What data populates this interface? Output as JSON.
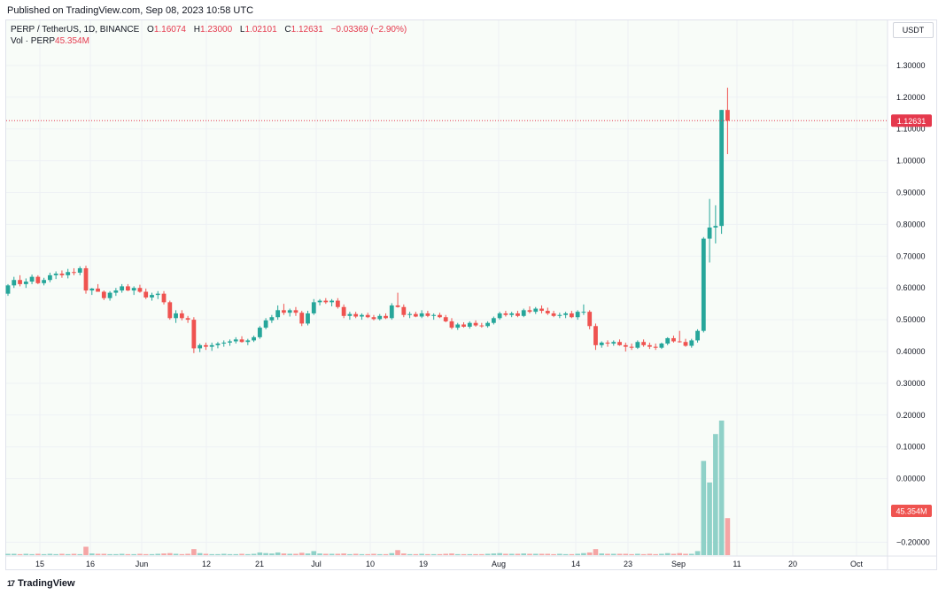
{
  "header": {
    "published": "Published on TradingView.com, Sep 08, 2023 10:58 UTC"
  },
  "legend": {
    "symbol": "PERP / TetherUS, 1D, BINANCE",
    "o_label": "O",
    "o_value": "1.16074",
    "h_label": "H",
    "h_value": "1.23000",
    "l_label": "L",
    "l_value": "1.02101",
    "c_label": "C",
    "c_value": "1.12631",
    "change": "−0.03369 (−2.90%)",
    "vol_label": "Vol · PERP",
    "vol_value": "45.354M"
  },
  "currency_button": "USDT",
  "footer": {
    "brand": "TradingView",
    "logo": "17"
  },
  "colors": {
    "up": "#26a69a",
    "down": "#ef5350",
    "up_vol": "#8fd1c8",
    "down_vol": "#f5a5a5",
    "price_line": "#e5394d",
    "grid": "#eef1f5"
  },
  "chart_data": {
    "type": "candlestick",
    "symbol": "PERP / TetherUS",
    "interval": "1D",
    "exchange": "BINANCE",
    "y_axis": {
      "ticks": [
        "1.30000",
        "1.20000",
        "1.10000",
        "1.00000",
        "0.90000",
        "0.80000",
        "0.70000",
        "0.60000",
        "0.50000",
        "0.40000",
        "0.30000",
        "0.20000",
        "0.10000",
        "0.00000",
        "−0.20000"
      ],
      "range": [
        -0.24,
        1.34
      ]
    },
    "x_axis": {
      "ticks": [
        "15",
        "16",
        "Jun",
        "12",
        "21",
        "Jul",
        "10",
        "19",
        "Aug",
        "14",
        "23",
        "Sep",
        "11",
        "20",
        "Oct"
      ]
    },
    "last_price": "1.12631",
    "last_volume": "45.354M",
    "candles": [
      [
        0.582,
        0.612,
        0.575,
        0.608
      ],
      [
        0.608,
        0.635,
        0.6,
        0.625
      ],
      [
        0.625,
        0.64,
        0.605,
        0.612
      ],
      [
        0.612,
        0.63,
        0.6,
        0.62
      ],
      [
        0.62,
        0.642,
        0.612,
        0.635
      ],
      [
        0.635,
        0.64,
        0.612,
        0.615
      ],
      [
        0.615,
        0.632,
        0.608,
        0.625
      ],
      [
        0.625,
        0.648,
        0.618,
        0.64
      ],
      [
        0.64,
        0.652,
        0.628,
        0.645
      ],
      [
        0.645,
        0.655,
        0.632,
        0.64
      ],
      [
        0.64,
        0.66,
        0.63,
        0.65
      ],
      [
        0.65,
        0.662,
        0.64,
        0.648
      ],
      [
        0.648,
        0.668,
        0.64,
        0.662
      ],
      [
        0.662,
        0.67,
        0.582,
        0.592
      ],
      [
        0.592,
        0.6,
        0.578,
        0.598
      ],
      [
        0.598,
        0.612,
        0.588,
        0.588
      ],
      [
        0.588,
        0.592,
        0.562,
        0.568
      ],
      [
        0.568,
        0.59,
        0.56,
        0.585
      ],
      [
        0.585,
        0.6,
        0.575,
        0.592
      ],
      [
        0.592,
        0.612,
        0.585,
        0.605
      ],
      [
        0.605,
        0.612,
        0.59,
        0.592
      ],
      [
        0.592,
        0.605,
        0.578,
        0.6
      ],
      [
        0.6,
        0.61,
        0.585,
        0.588
      ],
      [
        0.588,
        0.598,
        0.565,
        0.57
      ],
      [
        0.57,
        0.585,
        0.56,
        0.578
      ],
      [
        0.578,
        0.59,
        0.565,
        0.582
      ],
      [
        0.582,
        0.59,
        0.548,
        0.555
      ],
      [
        0.555,
        0.56,
        0.5,
        0.505
      ],
      [
        0.505,
        0.53,
        0.49,
        0.52
      ],
      [
        0.52,
        0.53,
        0.498,
        0.505
      ],
      [
        0.505,
        0.512,
        0.49,
        0.5
      ],
      [
        0.5,
        0.508,
        0.395,
        0.41
      ],
      [
        0.41,
        0.425,
        0.398,
        0.42
      ],
      [
        0.42,
        0.428,
        0.405,
        0.415
      ],
      [
        0.415,
        0.428,
        0.402,
        0.42
      ],
      [
        0.42,
        0.43,
        0.41,
        0.425
      ],
      [
        0.425,
        0.435,
        0.415,
        0.428
      ],
      [
        0.428,
        0.438,
        0.418,
        0.432
      ],
      [
        0.432,
        0.445,
        0.425,
        0.438
      ],
      [
        0.438,
        0.448,
        0.428,
        0.43
      ],
      [
        0.43,
        0.44,
        0.42,
        0.435
      ],
      [
        0.435,
        0.45,
        0.43,
        0.445
      ],
      [
        0.445,
        0.48,
        0.44,
        0.475
      ],
      [
        0.475,
        0.505,
        0.47,
        0.498
      ],
      [
        0.498,
        0.515,
        0.49,
        0.508
      ],
      [
        0.508,
        0.545,
        0.5,
        0.53
      ],
      [
        0.53,
        0.55,
        0.515,
        0.522
      ],
      [
        0.522,
        0.535,
        0.51,
        0.53
      ],
      [
        0.53,
        0.54,
        0.512,
        0.522
      ],
      [
        0.522,
        0.528,
        0.48,
        0.488
      ],
      [
        0.488,
        0.528,
        0.482,
        0.52
      ],
      [
        0.52,
        0.565,
        0.515,
        0.555
      ],
      [
        0.555,
        0.565,
        0.545,
        0.56
      ],
      [
        0.56,
        0.568,
        0.55,
        0.555
      ],
      [
        0.555,
        0.565,
        0.542,
        0.56
      ],
      [
        0.56,
        0.568,
        0.535,
        0.54
      ],
      [
        0.54,
        0.548,
        0.505,
        0.512
      ],
      [
        0.512,
        0.525,
        0.5,
        0.518
      ],
      [
        0.518,
        0.525,
        0.505,
        0.51
      ],
      [
        0.51,
        0.52,
        0.5,
        0.515
      ],
      [
        0.515,
        0.522,
        0.505,
        0.508
      ],
      [
        0.508,
        0.515,
        0.498,
        0.502
      ],
      [
        0.502,
        0.518,
        0.498,
        0.512
      ],
      [
        0.512,
        0.52,
        0.502,
        0.505
      ],
      [
        0.505,
        0.552,
        0.5,
        0.545
      ],
      [
        0.545,
        0.585,
        0.538,
        0.54
      ],
      [
        0.54,
        0.548,
        0.508,
        0.515
      ],
      [
        0.515,
        0.525,
        0.505,
        0.518
      ],
      [
        0.518,
        0.525,
        0.508,
        0.51
      ],
      [
        0.51,
        0.53,
        0.505,
        0.52
      ],
      [
        0.52,
        0.528,
        0.508,
        0.512
      ],
      [
        0.512,
        0.52,
        0.5,
        0.515
      ],
      [
        0.515,
        0.522,
        0.505,
        0.508
      ],
      [
        0.508,
        0.515,
        0.492,
        0.495
      ],
      [
        0.495,
        0.505,
        0.47,
        0.475
      ],
      [
        0.475,
        0.49,
        0.468,
        0.485
      ],
      [
        0.485,
        0.492,
        0.475,
        0.478
      ],
      [
        0.478,
        0.495,
        0.472,
        0.49
      ],
      [
        0.49,
        0.498,
        0.478,
        0.482
      ],
      [
        0.482,
        0.49,
        0.475,
        0.48
      ],
      [
        0.48,
        0.495,
        0.475,
        0.49
      ],
      [
        0.49,
        0.51,
        0.485,
        0.505
      ],
      [
        0.505,
        0.525,
        0.5,
        0.52
      ],
      [
        0.52,
        0.528,
        0.51,
        0.515
      ],
      [
        0.515,
        0.525,
        0.508,
        0.52
      ],
      [
        0.52,
        0.528,
        0.508,
        0.512
      ],
      [
        0.512,
        0.535,
        0.508,
        0.53
      ],
      [
        0.53,
        0.542,
        0.52,
        0.525
      ],
      [
        0.525,
        0.54,
        0.518,
        0.535
      ],
      [
        0.535,
        0.545,
        0.52,
        0.528
      ],
      [
        0.528,
        0.538,
        0.515,
        0.52
      ],
      [
        0.52,
        0.528,
        0.508,
        0.512
      ],
      [
        0.512,
        0.522,
        0.505,
        0.515
      ],
      [
        0.515,
        0.525,
        0.505,
        0.52
      ],
      [
        0.52,
        0.528,
        0.505,
        0.508
      ],
      [
        0.508,
        0.53,
        0.5,
        0.525
      ],
      [
        0.525,
        0.548,
        0.515,
        0.525
      ],
      [
        0.525,
        0.53,
        0.47,
        0.48
      ],
      [
        0.48,
        0.488,
        0.405,
        0.42
      ],
      [
        0.42,
        0.432,
        0.412,
        0.428
      ],
      [
        0.428,
        0.435,
        0.415,
        0.425
      ],
      [
        0.425,
        0.435,
        0.418,
        0.43
      ],
      [
        0.43,
        0.438,
        0.418,
        0.42
      ],
      [
        0.42,
        0.428,
        0.4,
        0.415
      ],
      [
        0.415,
        0.425,
        0.405,
        0.412
      ],
      [
        0.412,
        0.435,
        0.408,
        0.43
      ],
      [
        0.43,
        0.438,
        0.415,
        0.42
      ],
      [
        0.42,
        0.428,
        0.408,
        0.415
      ],
      [
        0.415,
        0.425,
        0.405,
        0.412
      ],
      [
        0.412,
        0.428,
        0.408,
        0.425
      ],
      [
        0.425,
        0.445,
        0.42,
        0.442
      ],
      [
        0.442,
        0.45,
        0.428,
        0.432
      ],
      [
        0.432,
        0.465,
        0.428,
        0.43
      ],
      [
        0.43,
        0.44,
        0.415,
        0.418
      ],
      [
        0.418,
        0.44,
        0.412,
        0.435
      ],
      [
        0.435,
        0.47,
        0.428,
        0.465
      ],
      [
        0.465,
        0.76,
        0.46,
        0.755
      ],
      [
        0.755,
        0.88,
        0.68,
        0.79
      ],
      [
        0.79,
        0.86,
        0.74,
        0.795
      ],
      [
        0.795,
        1.16,
        0.77,
        1.16
      ],
      [
        1.16,
        1.23,
        1.021,
        1.126
      ]
    ],
    "volumes": [
      0.004,
      0.004,
      0.003,
      0.004,
      0.003,
      0.004,
      0.003,
      0.004,
      0.003,
      0.004,
      0.003,
      0.004,
      0.003,
      0.025,
      0.005,
      0.004,
      0.004,
      0.003,
      0.003,
      0.004,
      0.003,
      0.003,
      0.004,
      0.003,
      0.003,
      0.004,
      0.005,
      0.006,
      0.004,
      0.003,
      0.004,
      0.018,
      0.006,
      0.004,
      0.003,
      0.003,
      0.004,
      0.003,
      0.003,
      0.004,
      0.003,
      0.004,
      0.008,
      0.006,
      0.005,
      0.008,
      0.005,
      0.004,
      0.004,
      0.007,
      0.005,
      0.012,
      0.005,
      0.004,
      0.004,
      0.004,
      0.005,
      0.003,
      0.004,
      0.003,
      0.003,
      0.004,
      0.003,
      0.003,
      0.006,
      0.015,
      0.005,
      0.003,
      0.003,
      0.004,
      0.003,
      0.003,
      0.003,
      0.004,
      0.005,
      0.003,
      0.003,
      0.003,
      0.003,
      0.003,
      0.004,
      0.005,
      0.006,
      0.004,
      0.004,
      0.004,
      0.005,
      0.004,
      0.004,
      0.004,
      0.004,
      0.003,
      0.004,
      0.003,
      0.003,
      0.004,
      0.006,
      0.008,
      0.018,
      0.005,
      0.004,
      0.004,
      0.004,
      0.004,
      0.003,
      0.004,
      0.003,
      0.004,
      0.003,
      0.004,
      0.006,
      0.004,
      0.006,
      0.004,
      0.004,
      0.012,
      0.28,
      0.216,
      0.36,
      0.4,
      0.11
    ]
  }
}
